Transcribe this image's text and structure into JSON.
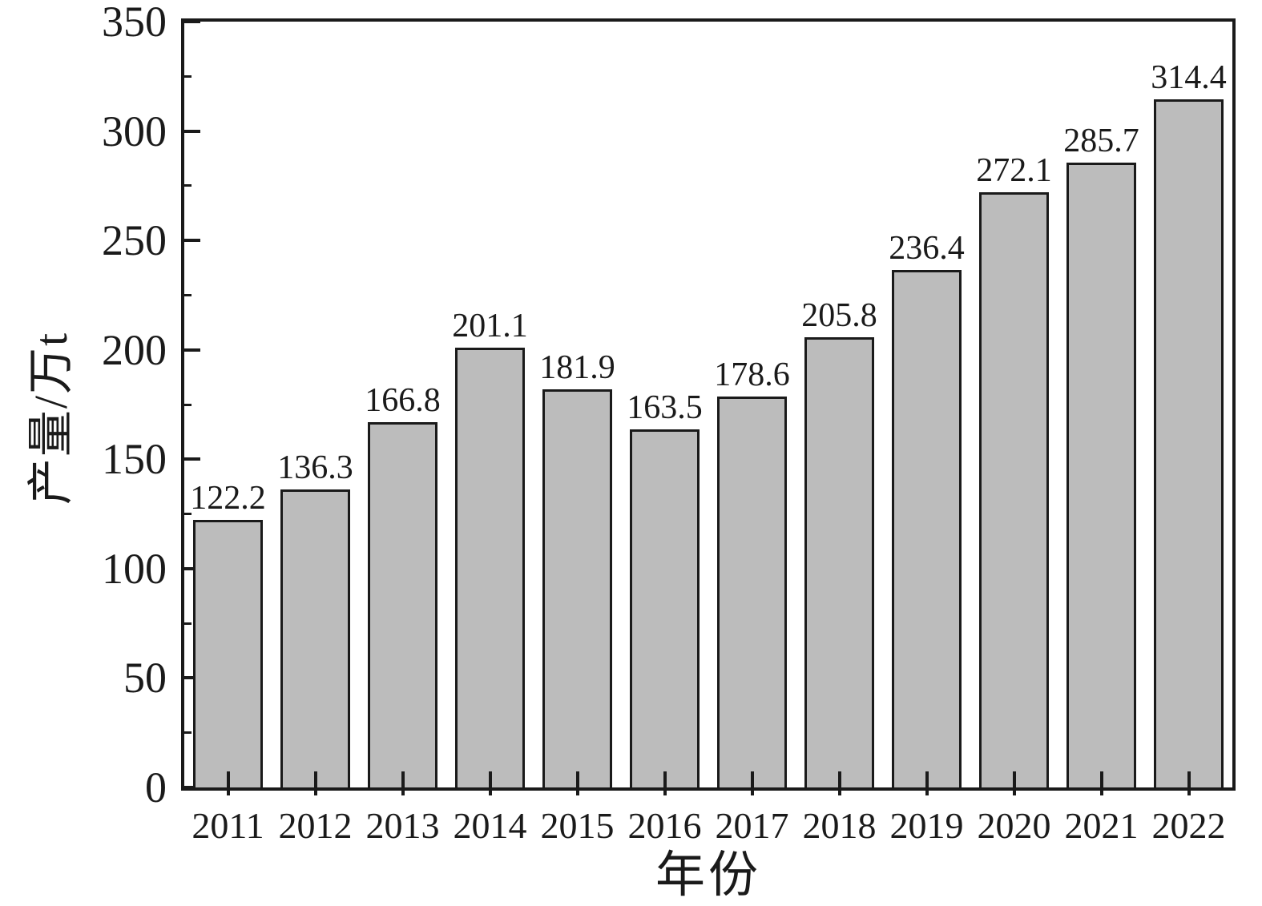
{
  "chart_data": {
    "type": "bar",
    "title": "",
    "categories": [
      "2011",
      "2012",
      "2013",
      "2014",
      "2015",
      "2016",
      "2017",
      "2018",
      "2019",
      "2020",
      "2021",
      "2022"
    ],
    "values": [
      122.2,
      136.3,
      166.8,
      201.1,
      181.9,
      163.5,
      178.6,
      205.8,
      236.4,
      272.1,
      285.7,
      314.4
    ],
    "value_labels": [
      "122.2",
      "136.3",
      "166.8",
      "201.1",
      "181.9",
      "163.5",
      "178.6",
      "205.8",
      "236.4",
      "272.1",
      "285.7",
      "314.4"
    ],
    "xlabel": "年份",
    "ylabel": "产量/万t",
    "ylim": [
      0,
      350
    ],
    "y_major_step": 50,
    "y_minor_step": 25,
    "y_tick_labels": [
      "0",
      "50",
      "100",
      "150",
      "200",
      "250",
      "300",
      "350"
    ],
    "grid": false,
    "legend": "none",
    "tick_direction": "in",
    "bar_fill_color": "#bcbcbc",
    "bar_border_color": "#1a1a1a",
    "axis_color": "#1a1a1a",
    "background_color": "#ffffff"
  }
}
